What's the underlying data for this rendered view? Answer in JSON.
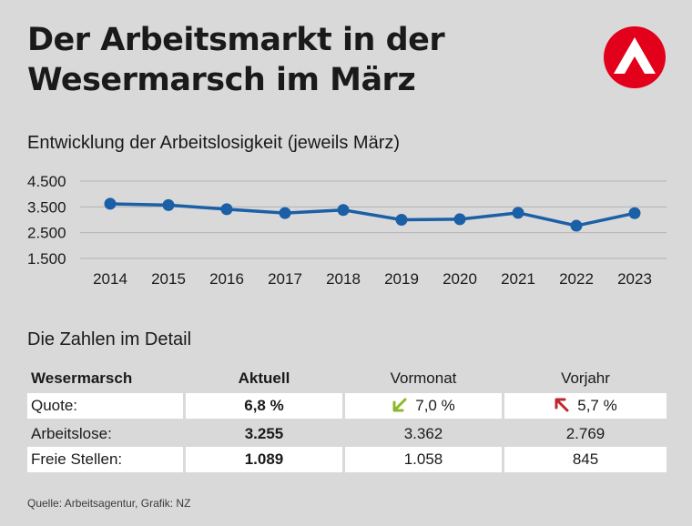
{
  "title_line1": "Der Arbeitsmarkt in der",
  "title_line2": "Wesermarsch im März",
  "logo_icon": "bundesagentur-logo-icon",
  "chart_data": {
    "type": "line",
    "title": "Entwicklung der Arbeitslosigkeit (jeweils März)",
    "categories": [
      "2014",
      "2015",
      "2016",
      "2017",
      "2018",
      "2019",
      "2020",
      "2021",
      "2022",
      "2023"
    ],
    "values": [
      3620,
      3570,
      3410,
      3260,
      3380,
      3000,
      3020,
      3270,
      2769,
      3255
    ],
    "ylim": [
      1500,
      4500
    ],
    "yticks": [
      1500,
      2500,
      3500,
      4500
    ],
    "ytick_labels": [
      "1.500",
      "2.500",
      "3.500",
      "4.500"
    ],
    "xlabel": "",
    "ylabel": "",
    "grid": true,
    "color": "#1b5fa6"
  },
  "table": {
    "title": "Die Zahlen im Detail",
    "headers": [
      "Wesermarsch",
      "Aktuell",
      "Vormonat",
      "Vorjahr"
    ],
    "rows": [
      {
        "label": "Quote:",
        "aktuell": "6,8 %",
        "vormonat": "7,0 %",
        "vorjahr": "5,7 %",
        "vormonat_icon": "arrow-down-left-icon",
        "vorjahr_icon": "arrow-up-left-icon"
      },
      {
        "label": "Arbeitslose:",
        "aktuell": "3.255",
        "vormonat": "3.362",
        "vorjahr": "2.769"
      },
      {
        "label": "Freie Stellen:",
        "aktuell": "1.089",
        "vormonat": "1.058",
        "vorjahr": "845"
      }
    ]
  },
  "colors": {
    "background": "#d9d9d9",
    "line": "#1b5fa6",
    "arrow_down": "#8cb82b",
    "arrow_up": "#c0272d",
    "logo": "#e2001a"
  },
  "source": "Quelle: Arbeitsagentur, Grafik: NZ"
}
